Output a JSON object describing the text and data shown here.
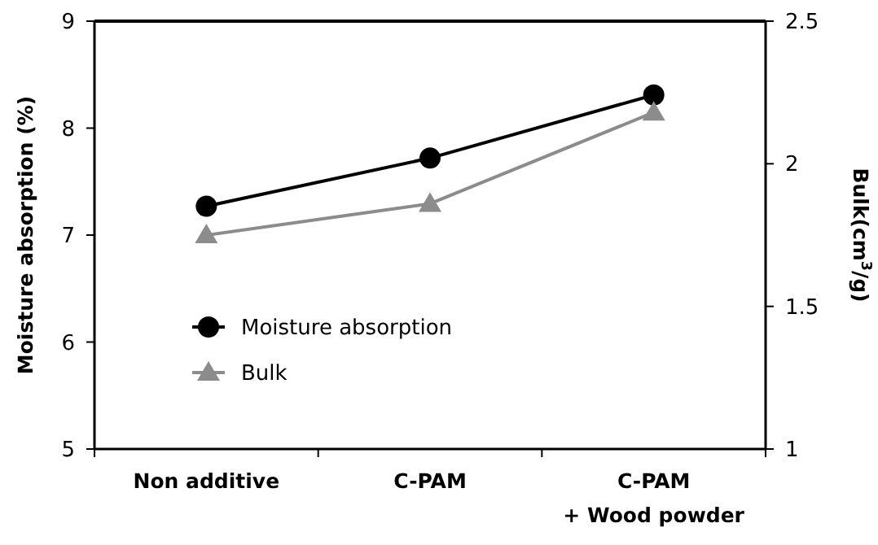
{
  "chart_data": {
    "type": "line",
    "ylabel": "Moisture absorption (%)",
    "y2label": "Bulk(cm$^{3}$/g)",
    "categories": [
      "Non additive",
      "C-PAM",
      "C-PAM\n+ Wood powder"
    ],
    "series": [
      {
        "name": "Moisture absorption",
        "color": "#000000",
        "marker": "circle",
        "values": [
          7.27,
          7.72,
          8.31
        ]
      },
      {
        "name": "Bulk",
        "color": "#8c8c8c",
        "marker": "triangle",
        "axis": "y2",
        "values": [
          1.75,
          1.86,
          2.18
        ]
      }
    ],
    "ylim": [
      5,
      9
    ],
    "yticks": [
      5,
      6,
      7,
      8,
      9
    ],
    "y2lim": [
      1,
      2.5
    ],
    "y2ticks": [
      1,
      1.5,
      2,
      2.5
    ],
    "grid": false,
    "legend": "bottom left",
    "line_style": "solid"
  }
}
